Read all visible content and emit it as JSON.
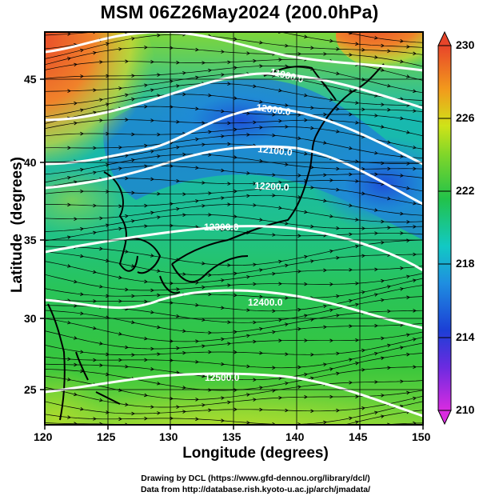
{
  "title": "MSM 06Z26May2024 (200.0hPa)",
  "x_axis": {
    "label": "Longitude (degrees)",
    "ticks": [
      "120",
      "125",
      "130",
      "135",
      "140",
      "145",
      "150"
    ]
  },
  "y_axis": {
    "label": "Latitude  (degrees)",
    "ticks": [
      "25",
      "30",
      "35",
      "40",
      "45"
    ]
  },
  "colorbar": {
    "ticks": [
      "210",
      "214",
      "218",
      "222",
      "226",
      "230"
    ],
    "colors": {
      "low": "#e02ad9",
      "c214": "#1c3fd6",
      "c218": "#12c9c4",
      "c222": "#22c24a",
      "c226": "#cfe318",
      "high": "#e8452a"
    }
  },
  "contours": [
    "11900.0",
    "12000.0",
    "12100.0",
    "12200.0",
    "12300.0",
    "12400.0",
    "12500.0"
  ],
  "credits": [
    "Drawing by DCL (https://www.gfd-dennou.org/library/dcl/)",
    "Data from http://database.rish.kyoto-u.ac.jp/arch/jmadata/"
  ]
}
